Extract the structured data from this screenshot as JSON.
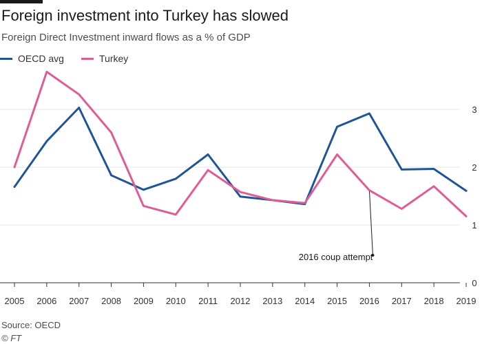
{
  "title": "Foreign investment into Turkey has slowed",
  "subtitle": "Foreign Direct Investment inward flows as a % of GDP",
  "source": "Source: OECD",
  "copyright": "© FT",
  "colors": {
    "oecd": "#1f5597",
    "turkey": "#e05c94",
    "grid": "#e6e6e6",
    "axis": "#333333",
    "text": "#333333"
  },
  "chart_data": {
    "type": "line",
    "title": "Foreign investment into Turkey has slowed",
    "subtitle": "Foreign Direct Investment inward flows as a % of GDP",
    "x": [
      "2005",
      "2006",
      "2007",
      "2008",
      "2009",
      "2010",
      "2011",
      "2012",
      "2013",
      "2014",
      "2015",
      "2016",
      "2017",
      "2018",
      "2019"
    ],
    "series": [
      {
        "name": "OECD avg",
        "color": "#1f5597",
        "values": [
          1.66,
          2.45,
          3.03,
          1.86,
          1.61,
          1.8,
          2.22,
          1.49,
          1.43,
          1.36,
          2.7,
          2.93,
          1.96,
          1.97,
          1.59
        ]
      },
      {
        "name": "Turkey",
        "color": "#e05c94",
        "values": [
          2.0,
          3.65,
          3.26,
          2.6,
          1.33,
          1.18,
          1.95,
          1.57,
          1.43,
          1.38,
          2.22,
          1.6,
          1.28,
          1.67,
          1.15
        ]
      }
    ],
    "ylim": [
      0,
      4
    ],
    "yticks": [
      0,
      1,
      2,
      3
    ],
    "grid": true,
    "legend": "top-left",
    "y_axis_side": "right",
    "annotations": [
      {
        "text": "2016 coup attempt",
        "x": "2016",
        "y": 1.6
      }
    ]
  }
}
